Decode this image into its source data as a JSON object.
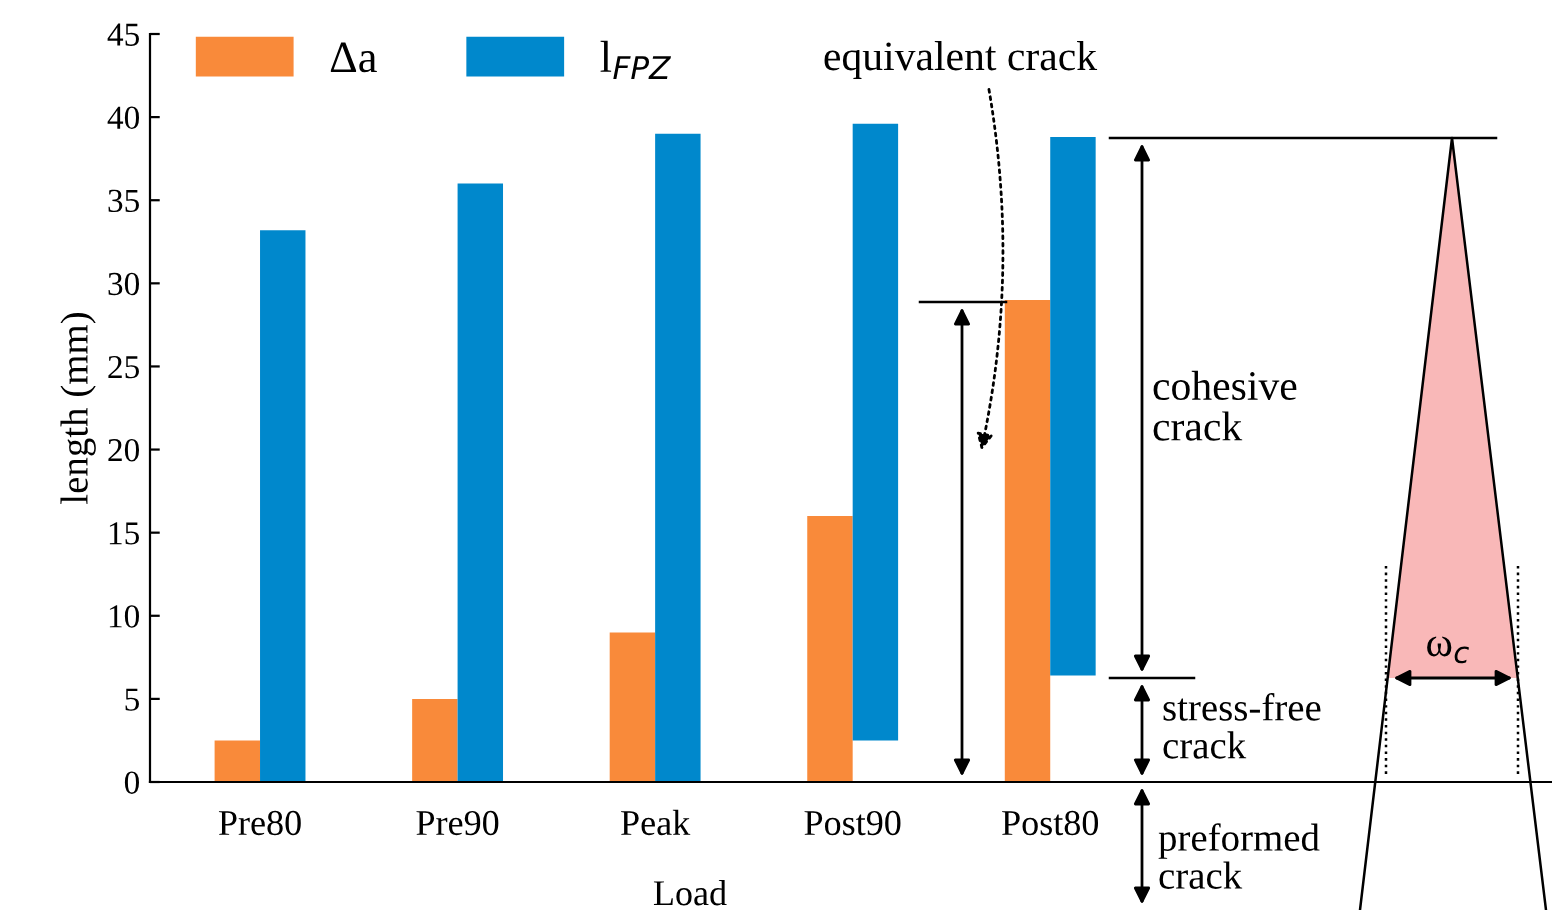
{
  "chart_data": {
    "type": "bar",
    "xlabel": "Load",
    "ylabel": "length (mm)",
    "categories": [
      "Pre80",
      "Pre90",
      "Peak",
      "Post90",
      "Post80"
    ],
    "series": [
      {
        "name": "Δa",
        "color": "#f98a3a",
        "values": [
          2.5,
          5,
          9,
          16,
          29
        ]
      },
      {
        "name": "l$_{FPZ}$",
        "color": "#0088cc",
        "values": [
          33.2,
          36,
          39,
          37.1,
          32.4
        ],
        "base": [
          0,
          0,
          0,
          2.5,
          6.4
        ]
      }
    ],
    "ylim": [
      0,
      45
    ],
    "yticks": [
      0,
      5,
      10,
      15,
      20,
      25,
      30,
      35,
      40,
      45
    ],
    "grid": false,
    "legend": "top left",
    "annotations": [
      "equivalent crack",
      "cohesive\ncrack",
      "stress-free\ncrack",
      "preformed\ncrack",
      "ω$_{c}$"
    ]
  }
}
